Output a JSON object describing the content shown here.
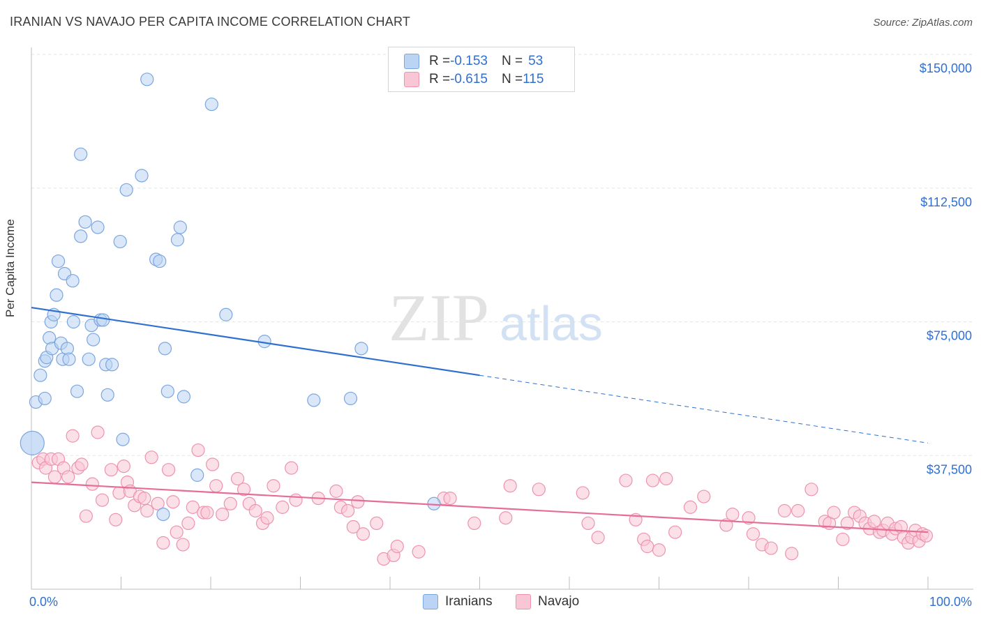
{
  "title": "IRANIAN VS NAVAJO PER CAPITA INCOME CORRELATION CHART",
  "source": "Source: ZipAtlas.com",
  "watermark": {
    "part1": "ZIP",
    "part2": "atlas"
  },
  "legend": {
    "rows": [
      {
        "r_label": "R = ",
        "r_value": "-0.153",
        "n_label": "N = ",
        "n_value": "53",
        "color": "#7aa6e0"
      },
      {
        "r_label": "R = ",
        "r_value": "-0.615",
        "n_label": "N = ",
        "n_value": "115",
        "color": "#ee92b0"
      }
    ]
  },
  "bottom_legend": {
    "iranians": "Iranians",
    "navajo": "Navajo"
  },
  "chart_data": {
    "type": "scatter",
    "title": "IRANIAN VS NAVAJO PER CAPITA INCOME CORRELATION CHART",
    "xlabel": "",
    "ylabel": "Per Capita Income",
    "xlim": [
      0,
      100
    ],
    "ylim": [
      0,
      155000
    ],
    "x_tick_labels": [
      "0.0%",
      "100.0%"
    ],
    "y_ticks": [
      37500,
      75000,
      112500,
      150000
    ],
    "y_tick_labels": [
      "$37,500",
      "$75,000",
      "$112,500",
      "$150,000"
    ],
    "grid": true,
    "legend_position": "top-center",
    "series": [
      {
        "name": "Iranians",
        "color": "#7aa6e0",
        "fill": "#bcd4f4",
        "trend": {
          "x0": 0,
          "y0": 79000,
          "x1": 50,
          "y1": 60000,
          "dashed_to_x": 100,
          "dashed_to_y": 41000,
          "color": "#2f6fd0"
        },
        "points": [
          [
            0.5,
            52500
          ],
          [
            1.0,
            60000
          ],
          [
            1.5,
            64000
          ],
          [
            1.7,
            65000
          ],
          [
            1.5,
            53500
          ],
          [
            2.0,
            70500
          ],
          [
            2.2,
            75000
          ],
          [
            2.3,
            67500
          ],
          [
            2.5,
            77000
          ],
          [
            2.8,
            82500
          ],
          [
            3.0,
            92000
          ],
          [
            3.3,
            69000
          ],
          [
            3.5,
            64500
          ],
          [
            3.7,
            88500
          ],
          [
            4.0,
            67500
          ],
          [
            4.2,
            64500
          ],
          [
            4.6,
            86500
          ],
          [
            4.7,
            75000
          ],
          [
            5.1,
            55500
          ],
          [
            5.5,
            122000
          ],
          [
            5.5,
            99000
          ],
          [
            6.0,
            103000
          ],
          [
            6.4,
            64500
          ],
          [
            6.7,
            74000
          ],
          [
            6.9,
            70000
          ],
          [
            7.4,
            101500
          ],
          [
            7.7,
            75500
          ],
          [
            8.0,
            75500
          ],
          [
            8.3,
            63000
          ],
          [
            8.5,
            54500
          ],
          [
            9.0,
            63000
          ],
          [
            9.9,
            97500
          ],
          [
            10.2,
            42000
          ],
          [
            10.6,
            112000
          ],
          [
            12.3,
            116000
          ],
          [
            12.9,
            143000
          ],
          [
            13.9,
            92500
          ],
          [
            14.3,
            92000
          ],
          [
            14.7,
            21000
          ],
          [
            14.9,
            67500
          ],
          [
            15.2,
            55500
          ],
          [
            16.3,
            98000
          ],
          [
            16.6,
            101500
          ],
          [
            17.0,
            54000
          ],
          [
            18.5,
            32000
          ],
          [
            20.1,
            136000
          ],
          [
            21.7,
            77000
          ],
          [
            26.0,
            69500
          ],
          [
            31.5,
            53000
          ],
          [
            35.6,
            53500
          ],
          [
            36.8,
            67500
          ],
          [
            44.9,
            24000
          ],
          [
            0.1,
            41000
          ]
        ]
      },
      {
        "name": "Navajo",
        "color": "#ee92b0",
        "fill": "#f9c6d6",
        "trend": {
          "x0": 0,
          "y0": 30000,
          "x1": 100,
          "y1": 16000,
          "color": "#e56d97"
        },
        "points": [
          [
            0.8,
            35500
          ],
          [
            1.3,
            36500
          ],
          [
            1.6,
            34000
          ],
          [
            2.2,
            36500
          ],
          [
            2.6,
            31500
          ],
          [
            3.0,
            36500
          ],
          [
            3.6,
            34000
          ],
          [
            4.1,
            31500
          ],
          [
            4.6,
            43000
          ],
          [
            5.2,
            34000
          ],
          [
            5.6,
            35000
          ],
          [
            6.1,
            20500
          ],
          [
            6.8,
            29500
          ],
          [
            7.4,
            44000
          ],
          [
            7.9,
            25000
          ],
          [
            8.9,
            33500
          ],
          [
            9.4,
            19500
          ],
          [
            9.8,
            27000
          ],
          [
            10.3,
            34500
          ],
          [
            10.7,
            30000
          ],
          [
            11.0,
            27500
          ],
          [
            11.5,
            23500
          ],
          [
            12.1,
            26000
          ],
          [
            12.6,
            25500
          ],
          [
            12.9,
            22000
          ],
          [
            13.4,
            37000
          ],
          [
            14.1,
            24000
          ],
          [
            14.7,
            13000
          ],
          [
            15.3,
            33500
          ],
          [
            15.8,
            24500
          ],
          [
            16.2,
            16000
          ],
          [
            16.9,
            12500
          ],
          [
            17.5,
            18500
          ],
          [
            18.0,
            23000
          ],
          [
            18.6,
            39000
          ],
          [
            19.2,
            21500
          ],
          [
            19.6,
            21500
          ],
          [
            20.2,
            35000
          ],
          [
            20.6,
            29000
          ],
          [
            21.3,
            21000
          ],
          [
            22.2,
            24000
          ],
          [
            23.0,
            31000
          ],
          [
            23.7,
            28000
          ],
          [
            24.3,
            24000
          ],
          [
            25.0,
            22000
          ],
          [
            25.8,
            18500
          ],
          [
            26.3,
            20000
          ],
          [
            27.0,
            29000
          ],
          [
            28.0,
            23000
          ],
          [
            29.0,
            34000
          ],
          [
            29.5,
            25000
          ],
          [
            32.0,
            25500
          ],
          [
            34.0,
            27500
          ],
          [
            34.5,
            23000
          ],
          [
            35.3,
            22000
          ],
          [
            35.9,
            17500
          ],
          [
            36.4,
            24500
          ],
          [
            37.0,
            15500
          ],
          [
            38.5,
            18500
          ],
          [
            39.3,
            8500
          ],
          [
            40.4,
            9500
          ],
          [
            40.8,
            12000
          ],
          [
            43.2,
            10500
          ],
          [
            46.0,
            25500
          ],
          [
            46.7,
            25500
          ],
          [
            49.4,
            18500
          ],
          [
            52.9,
            20000
          ],
          [
            53.4,
            29000
          ],
          [
            56.6,
            28000
          ],
          [
            61.5,
            27000
          ],
          [
            62.1,
            18500
          ],
          [
            63.2,
            14500
          ],
          [
            66.3,
            30500
          ],
          [
            67.4,
            19500
          ],
          [
            68.3,
            14000
          ],
          [
            68.7,
            12000
          ],
          [
            69.3,
            30500
          ],
          [
            70.0,
            11000
          ],
          [
            70.8,
            31000
          ],
          [
            71.8,
            16000
          ],
          [
            73.5,
            23000
          ],
          [
            75.0,
            26000
          ],
          [
            77.5,
            18000
          ],
          [
            78.2,
            21000
          ],
          [
            80.0,
            20000
          ],
          [
            80.5,
            15500
          ],
          [
            81.5,
            12500
          ],
          [
            82.5,
            11500
          ],
          [
            84.0,
            22000
          ],
          [
            84.8,
            10000
          ],
          [
            85.5,
            22000
          ],
          [
            87.0,
            28000
          ],
          [
            88.5,
            19000
          ],
          [
            89.0,
            18500
          ],
          [
            89.5,
            21500
          ],
          [
            90.5,
            14000
          ],
          [
            91.0,
            18500
          ],
          [
            91.8,
            21500
          ],
          [
            92.4,
            20500
          ],
          [
            93.0,
            18500
          ],
          [
            93.5,
            17000
          ],
          [
            94.0,
            19000
          ],
          [
            94.6,
            16000
          ],
          [
            95.0,
            16500
          ],
          [
            95.5,
            18500
          ],
          [
            96.0,
            15500
          ],
          [
            96.4,
            17000
          ],
          [
            97.0,
            17500
          ],
          [
            97.3,
            14500
          ],
          [
            97.8,
            13000
          ],
          [
            98.2,
            14500
          ],
          [
            98.6,
            16500
          ],
          [
            99.0,
            13500
          ],
          [
            99.4,
            15500
          ],
          [
            99.8,
            15000
          ]
        ]
      }
    ]
  }
}
